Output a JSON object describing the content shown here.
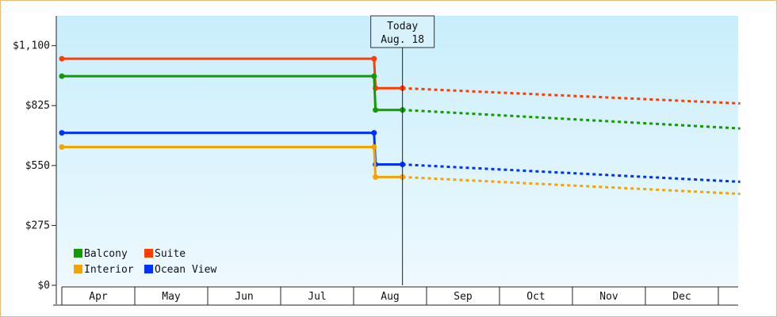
{
  "chart_data": {
    "type": "line",
    "title": "",
    "xlabel": "",
    "ylabel": "",
    "x_categories": [
      "Apr",
      "May",
      "Jun",
      "Jul",
      "Aug",
      "Sep",
      "Oct",
      "Nov",
      "Dec"
    ],
    "ylim": [
      0,
      1237
    ],
    "y_ticks": [
      {
        "value": 0,
        "label": "$0"
      },
      {
        "value": 275,
        "label": "$275"
      },
      {
        "value": 550,
        "label": "$550"
      },
      {
        "value": 825,
        "label": "$825"
      },
      {
        "value": 1100,
        "label": "$1,100"
      }
    ],
    "today_marker": {
      "line1": "Today",
      "line2": "Aug. 18",
      "month_position": 4.67
    },
    "series": [
      {
        "name": "Suite",
        "color": "#ff3d00",
        "points": [
          {
            "m": 0,
            "v": 1040
          },
          {
            "m": 4.28,
            "v": 1040
          },
          {
            "m": 4.3,
            "v": 905
          },
          {
            "m": 4.67,
            "v": 905
          }
        ],
        "forecast": [
          {
            "m": 4.67,
            "v": 905
          },
          {
            "m": 9.3,
            "v": 835
          }
        ]
      },
      {
        "name": "Balcony",
        "color": "#129b00",
        "points": [
          {
            "m": 0,
            "v": 960
          },
          {
            "m": 4.28,
            "v": 960
          },
          {
            "m": 4.3,
            "v": 805
          },
          {
            "m": 4.67,
            "v": 805
          }
        ],
        "forecast": [
          {
            "m": 4.67,
            "v": 805
          },
          {
            "m": 9.3,
            "v": 720
          }
        ]
      },
      {
        "name": "Ocean View",
        "color": "#0031ff",
        "points": [
          {
            "m": 0,
            "v": 700
          },
          {
            "m": 4.28,
            "v": 700
          },
          {
            "m": 4.3,
            "v": 555
          },
          {
            "m": 4.67,
            "v": 555
          }
        ],
        "forecast": [
          {
            "m": 4.67,
            "v": 555
          },
          {
            "m": 9.3,
            "v": 475
          }
        ]
      },
      {
        "name": "Interior",
        "color": "#f4a300",
        "points": [
          {
            "m": 0,
            "v": 635
          },
          {
            "m": 4.28,
            "v": 635
          },
          {
            "m": 4.3,
            "v": 497
          },
          {
            "m": 4.67,
            "v": 497
          }
        ],
        "forecast": [
          {
            "m": 4.67,
            "v": 497
          },
          {
            "m": 9.3,
            "v": 420
          }
        ]
      }
    ],
    "legend": [
      {
        "name": "Balcony",
        "color": "#129b00"
      },
      {
        "name": "Suite",
        "color": "#ff3d00"
      },
      {
        "name": "Interior",
        "color": "#f4a300"
      },
      {
        "name": "Ocean View",
        "color": "#0031ff"
      }
    ],
    "legend_placement": "bottom-left",
    "grid": false
  }
}
